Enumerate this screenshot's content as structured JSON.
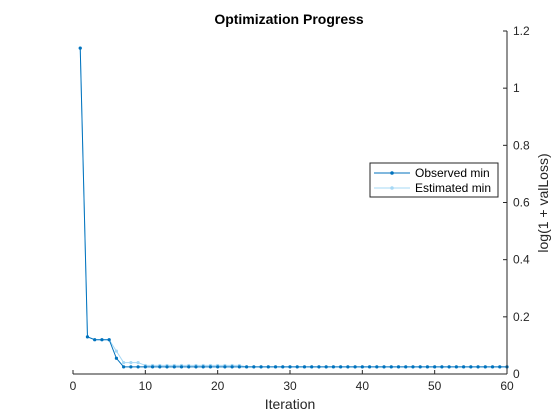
{
  "chart_data": {
    "type": "line",
    "title": "Optimization Progress",
    "xlabel": "Iteration",
    "ylabel": "log(1 + valLoss)",
    "xlim": [
      0,
      60
    ],
    "ylim": [
      0,
      1.2
    ],
    "xticks": [
      "0",
      "10",
      "20",
      "30",
      "40",
      "50",
      "60"
    ],
    "yticks": [
      "0",
      "0.2",
      "0.4",
      "0.6",
      "0.8",
      "1",
      "1.2"
    ],
    "y_axis_side": "right",
    "grid": false,
    "legend_position": "right",
    "series": [
      {
        "name": "Observed min",
        "color": "#0072bd",
        "x": [
          1,
          2,
          3,
          4,
          5,
          6,
          7,
          8,
          9,
          10,
          11,
          12,
          13,
          14,
          15,
          16,
          17,
          18,
          19,
          20,
          21,
          22,
          23,
          24,
          25,
          26,
          27,
          28,
          29,
          30,
          31,
          32,
          33,
          34,
          35,
          36,
          37,
          38,
          39,
          40,
          41,
          42,
          43,
          44,
          45,
          46,
          47,
          48,
          49,
          50,
          51,
          52,
          53,
          54,
          55,
          56,
          57,
          58,
          59,
          60
        ],
        "y": [
          1.14,
          0.13,
          0.12,
          0.12,
          0.12,
          0.055,
          0.025,
          0.025,
          0.025,
          0.025,
          0.025,
          0.025,
          0.025,
          0.025,
          0.025,
          0.025,
          0.025,
          0.025,
          0.025,
          0.025,
          0.025,
          0.025,
          0.025,
          0.025,
          0.025,
          0.025,
          0.025,
          0.025,
          0.025,
          0.025,
          0.025,
          0.025,
          0.025,
          0.025,
          0.025,
          0.025,
          0.025,
          0.025,
          0.025,
          0.025,
          0.025,
          0.025,
          0.025,
          0.025,
          0.025,
          0.025,
          0.025,
          0.025,
          0.025,
          0.025,
          0.025,
          0.025,
          0.025,
          0.025,
          0.025,
          0.025,
          0.025,
          0.025,
          0.025,
          0.025
        ]
      },
      {
        "name": "Estimated min",
        "color": "#a6d8f5",
        "x": [
          1,
          2,
          3,
          4,
          5,
          6,
          7,
          8,
          9,
          10,
          11,
          12,
          13,
          14,
          15,
          16,
          17,
          18,
          19,
          20,
          21,
          22,
          23,
          24,
          25,
          26,
          27,
          28,
          29,
          30,
          31,
          32,
          33,
          34,
          35,
          36,
          37,
          38,
          39,
          40,
          41,
          42,
          43,
          44,
          45,
          46,
          47,
          48,
          49,
          50,
          51,
          52,
          53,
          54,
          55,
          56,
          57,
          58,
          59,
          60
        ],
        "y": [
          1.14,
          0.13,
          0.12,
          0.12,
          0.12,
          0.08,
          0.04,
          0.04,
          0.04,
          0.03,
          0.03,
          0.03,
          0.03,
          0.03,
          0.03,
          0.03,
          0.03,
          0.03,
          0.03,
          0.03,
          0.03,
          0.03,
          0.03,
          0.025,
          0.025,
          0.025,
          0.025,
          0.025,
          0.025,
          0.025,
          0.025,
          0.025,
          0.025,
          0.025,
          0.025,
          0.025,
          0.025,
          0.025,
          0.025,
          0.025,
          0.025,
          0.025,
          0.025,
          0.025,
          0.025,
          0.025,
          0.025,
          0.025,
          0.025,
          0.025,
          0.025,
          0.025,
          0.025,
          0.025,
          0.025,
          0.025,
          0.025,
          0.025,
          0.025,
          0.025
        ]
      }
    ]
  }
}
